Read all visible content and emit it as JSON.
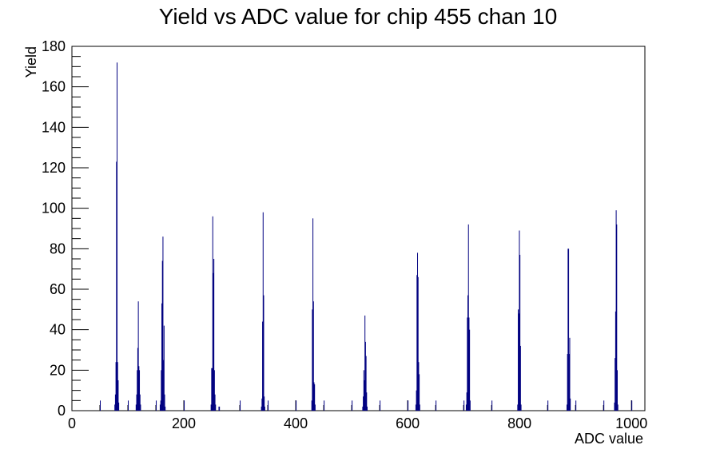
{
  "chart_data": {
    "type": "bar",
    "title": "Yield vs ADC value for chip 455 chan 10",
    "xlabel": "ADC value",
    "ylabel": "Yield",
    "xlim": [
      0,
      1024
    ],
    "ylim": [
      0,
      180
    ],
    "x_ticks": [
      0,
      200,
      400,
      600,
      800,
      1000
    ],
    "y_ticks": [
      0,
      20,
      40,
      60,
      80,
      100,
      120,
      140,
      160,
      180
    ],
    "grid": false,
    "legend": "none",
    "bin_width": 1,
    "color": "#000080",
    "series": [
      {
        "points": [
          {
            "x": 50,
            "y": 5
          },
          {
            "x": 76,
            "y": 3
          },
          {
            "x": 77,
            "y": 8
          },
          {
            "x": 78,
            "y": 24
          },
          {
            "x": 79,
            "y": 123
          },
          {
            "x": 80,
            "y": 172
          },
          {
            "x": 81,
            "y": 24
          },
          {
            "x": 82,
            "y": 15
          },
          {
            "x": 83,
            "y": 4
          },
          {
            "x": 100,
            "y": 5
          },
          {
            "x": 114,
            "y": 3
          },
          {
            "x": 115,
            "y": 8
          },
          {
            "x": 116,
            "y": 20
          },
          {
            "x": 117,
            "y": 31
          },
          {
            "x": 118,
            "y": 54
          },
          {
            "x": 119,
            "y": 22
          },
          {
            "x": 120,
            "y": 20
          },
          {
            "x": 121,
            "y": 8
          },
          {
            "x": 122,
            "y": 3
          },
          {
            "x": 150,
            "y": 5
          },
          {
            "x": 157,
            "y": 3
          },
          {
            "x": 158,
            "y": 5
          },
          {
            "x": 159,
            "y": 20
          },
          {
            "x": 160,
            "y": 53
          },
          {
            "x": 161,
            "y": 74
          },
          {
            "x": 162,
            "y": 86
          },
          {
            "x": 163,
            "y": 25
          },
          {
            "x": 164,
            "y": 42
          },
          {
            "x": 165,
            "y": 8
          },
          {
            "x": 166,
            "y": 2
          },
          {
            "x": 200,
            "y": 5
          },
          {
            "x": 248,
            "y": 3
          },
          {
            "x": 249,
            "y": 21
          },
          {
            "x": 250,
            "y": 21
          },
          {
            "x": 251,
            "y": 96
          },
          {
            "x": 252,
            "y": 68
          },
          {
            "x": 253,
            "y": 75
          },
          {
            "x": 254,
            "y": 20
          },
          {
            "x": 255,
            "y": 8
          },
          {
            "x": 256,
            "y": 3
          },
          {
            "x": 262,
            "y": 2
          },
          {
            "x": 263,
            "y": 2
          },
          {
            "x": 300,
            "y": 5
          },
          {
            "x": 338,
            "y": 2
          },
          {
            "x": 339,
            "y": 6
          },
          {
            "x": 340,
            "y": 44
          },
          {
            "x": 341,
            "y": 98
          },
          {
            "x": 342,
            "y": 57
          },
          {
            "x": 343,
            "y": 7
          },
          {
            "x": 344,
            "y": 2
          },
          {
            "x": 350,
            "y": 5
          },
          {
            "x": 400,
            "y": 5
          },
          {
            "x": 428,
            "y": 5
          },
          {
            "x": 429,
            "y": 50
          },
          {
            "x": 430,
            "y": 95
          },
          {
            "x": 431,
            "y": 54
          },
          {
            "x": 432,
            "y": 14
          },
          {
            "x": 433,
            "y": 13
          },
          {
            "x": 434,
            "y": 3
          },
          {
            "x": 450,
            "y": 5
          },
          {
            "x": 500,
            "y": 5
          },
          {
            "x": 519,
            "y": 2
          },
          {
            "x": 520,
            "y": 7
          },
          {
            "x": 521,
            "y": 20
          },
          {
            "x": 522,
            "y": 15
          },
          {
            "x": 523,
            "y": 47
          },
          {
            "x": 524,
            "y": 34
          },
          {
            "x": 525,
            "y": 27
          },
          {
            "x": 526,
            "y": 9
          },
          {
            "x": 527,
            "y": 2
          },
          {
            "x": 550,
            "y": 5
          },
          {
            "x": 600,
            "y": 5
          },
          {
            "x": 614,
            "y": 3
          },
          {
            "x": 615,
            "y": 10
          },
          {
            "x": 616,
            "y": 67
          },
          {
            "x": 617,
            "y": 78
          },
          {
            "x": 618,
            "y": 66
          },
          {
            "x": 619,
            "y": 24
          },
          {
            "x": 620,
            "y": 18
          },
          {
            "x": 621,
            "y": 3
          },
          {
            "x": 650,
            "y": 5
          },
          {
            "x": 700,
            "y": 5
          },
          {
            "x": 704,
            "y": 3
          },
          {
            "x": 705,
            "y": 9
          },
          {
            "x": 706,
            "y": 46
          },
          {
            "x": 707,
            "y": 57
          },
          {
            "x": 708,
            "y": 92
          },
          {
            "x": 709,
            "y": 46
          },
          {
            "x": 710,
            "y": 40
          },
          {
            "x": 711,
            "y": 5
          },
          {
            "x": 750,
            "y": 5
          },
          {
            "x": 796,
            "y": 3
          },
          {
            "x": 797,
            "y": 50
          },
          {
            "x": 798,
            "y": 48
          },
          {
            "x": 799,
            "y": 89
          },
          {
            "x": 800,
            "y": 77
          },
          {
            "x": 801,
            "y": 32
          },
          {
            "x": 802,
            "y": 3
          },
          {
            "x": 850,
            "y": 5
          },
          {
            "x": 884,
            "y": 3
          },
          {
            "x": 885,
            "y": 28
          },
          {
            "x": 886,
            "y": 80
          },
          {
            "x": 887,
            "y": 80
          },
          {
            "x": 888,
            "y": 28
          },
          {
            "x": 889,
            "y": 36
          },
          {
            "x": 890,
            "y": 6
          },
          {
            "x": 900,
            "y": 5
          },
          {
            "x": 950,
            "y": 5
          },
          {
            "x": 969,
            "y": 4
          },
          {
            "x": 970,
            "y": 26
          },
          {
            "x": 971,
            "y": 49
          },
          {
            "x": 972,
            "y": 99
          },
          {
            "x": 973,
            "y": 92
          },
          {
            "x": 974,
            "y": 20
          },
          {
            "x": 975,
            "y": 3
          },
          {
            "x": 1000,
            "y": 5
          }
        ]
      }
    ]
  }
}
